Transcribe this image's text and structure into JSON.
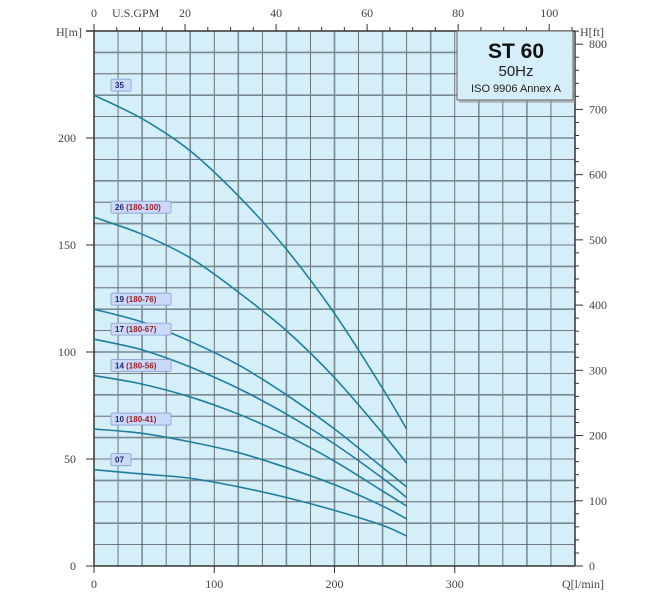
{
  "chart_data": {
    "type": "line",
    "title": "ST 60",
    "subtitle": "50Hz",
    "standard": "ISO 9906 Annex A",
    "xlabel": "Q[l/min]",
    "ylabel": "H[m]",
    "y2label": "H[ft]",
    "x2label": "U.S.GPM",
    "xlim": [
      0,
      400
    ],
    "ylim": [
      0,
      250
    ],
    "x_ticks": [
      0,
      100,
      200,
      300
    ],
    "y_ticks": [
      0,
      50,
      100,
      150,
      200
    ],
    "x2_ticks": [
      0,
      20,
      40,
      60,
      80,
      100
    ],
    "y2_ticks": [
      0,
      100,
      200,
      300,
      400,
      500,
      600,
      700,
      800
    ],
    "grid": true,
    "colors": {
      "curve": "#1f7f9a",
      "background": "#d4eefa",
      "grid": "#555555",
      "tag_fill": "#c9d9f7"
    },
    "x": [
      0,
      40,
      80,
      120,
      160,
      200,
      240,
      260
    ],
    "series": [
      {
        "name": "35",
        "label_num": "35",
        "label_model": "",
        "values": [
          220,
          209,
          194,
          173,
          148,
          118,
          83,
          64
        ]
      },
      {
        "name": "26 (180-100)",
        "label_num": "26",
        "label_model": "(180-100)",
        "values": [
          163,
          155,
          144,
          128,
          110,
          88,
          62,
          48
        ]
      },
      {
        "name": "19 (180-76)",
        "label_num": "19",
        "label_model": "(180-76)",
        "values": [
          120,
          114,
          105,
          94,
          80,
          64,
          46,
          37
        ]
      },
      {
        "name": "17 (180-67)",
        "label_num": "17",
        "label_model": "(180-67)",
        "values": [
          106,
          101,
          93,
          83,
          71,
          57,
          41,
          32
        ]
      },
      {
        "name": "14 (180-56)",
        "label_num": "14",
        "label_model": "(180-56)",
        "values": [
          89,
          85,
          79,
          71,
          61,
          49,
          35,
          28
        ]
      },
      {
        "name": "10 (180-41)",
        "label_num": "10",
        "label_model": "(180-41)",
        "values": [
          64,
          62,
          58,
          53,
          46,
          38,
          28,
          22
        ]
      },
      {
        "name": "07",
        "label_num": "07",
        "label_model": "",
        "values": [
          45,
          43,
          41,
          37,
          32,
          26,
          19,
          14
        ]
      }
    ]
  }
}
